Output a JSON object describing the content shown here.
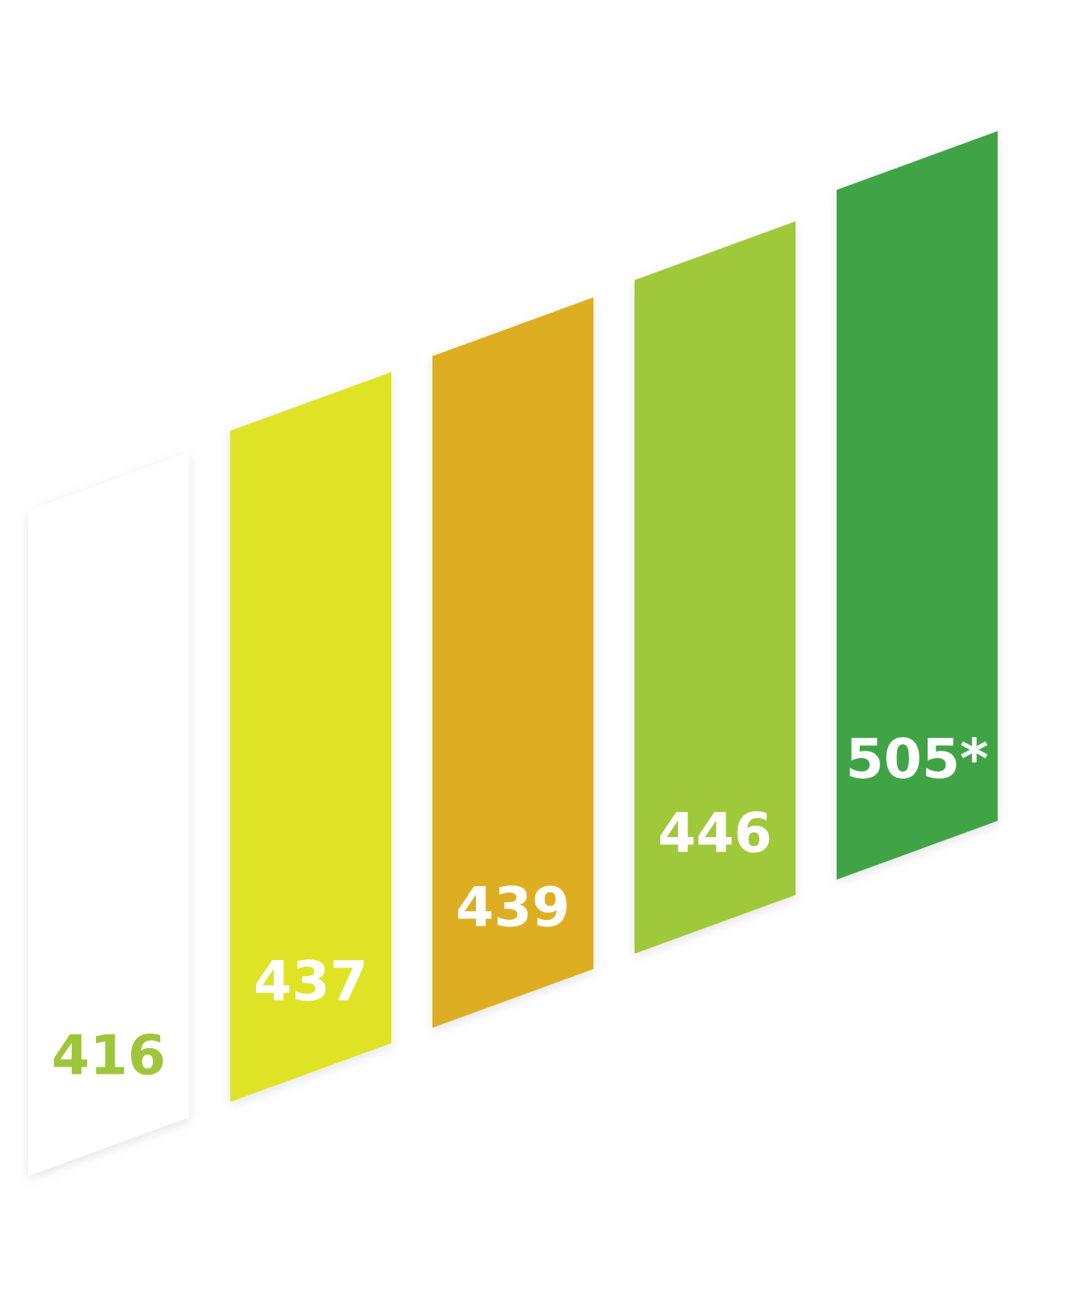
{
  "chart_data": {
    "type": "bar",
    "title": "",
    "xlabel": "",
    "ylabel": "",
    "categories": [
      "",
      "",
      "",
      "",
      ""
    ],
    "values": [
      416,
      437,
      439,
      446,
      505
    ],
    "labels": [
      "416",
      "437",
      "439",
      "446",
      "505*"
    ],
    "bar_colors": [
      "#ffffff",
      "#dfe325",
      "#deae22",
      "#a0c83a",
      "#3fa447"
    ],
    "label_colors": [
      "#9ec63b",
      "#ffffff",
      "#ffffff",
      "#ffffff",
      "#ffffff"
    ],
    "bar_style": "slanted parallelogram with drop shadow",
    "grid": false,
    "legend": "none"
  }
}
